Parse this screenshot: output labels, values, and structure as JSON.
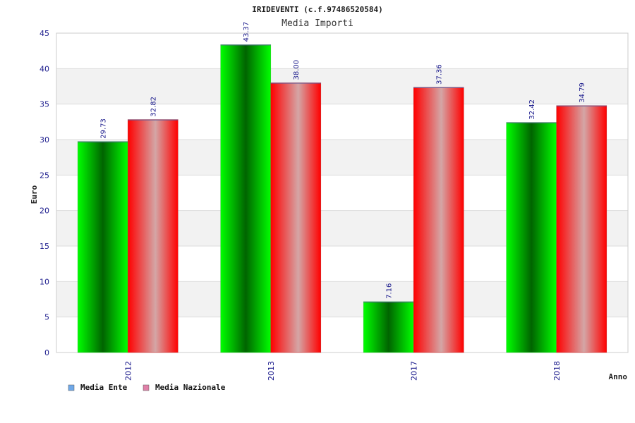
{
  "chart_data": {
    "type": "bar",
    "title": "IRIDEVENTI (c.f.97486520584)",
    "subtitle": "Media Importi",
    "xlabel": "Anno",
    "ylabel": "Euro",
    "categories": [
      "2012",
      "2013",
      "2017",
      "2018"
    ],
    "series": [
      {
        "name": "Media Ente",
        "values": [
          29.73,
          43.37,
          7.16,
          32.42
        ],
        "labels": [
          "29.73",
          "43.37",
          "7.16",
          "32.42"
        ]
      },
      {
        "name": "Media Nazionale",
        "values": [
          32.82,
          38.0,
          37.36,
          34.79
        ],
        "labels": [
          "32.82",
          "38.00",
          "37.36",
          "34.79"
        ]
      }
    ],
    "ylim": [
      0,
      45
    ],
    "yticks": [
      "0",
      "5",
      "10",
      "15",
      "20",
      "25",
      "30",
      "35",
      "40",
      "45"
    ],
    "grid": "horizontal bands",
    "legend": "bottom-left",
    "colors": {
      "ente_dark": "#006400",
      "ente_light": "#00ff00",
      "nazionale_main": "#ff0000",
      "nazionale_light": "#d4a6a6",
      "legend_ente": "#6fa8e8",
      "legend_nazionale": "#e080a8",
      "band": "#f2f2f2",
      "tick_text": "#1a1a8c"
    }
  }
}
